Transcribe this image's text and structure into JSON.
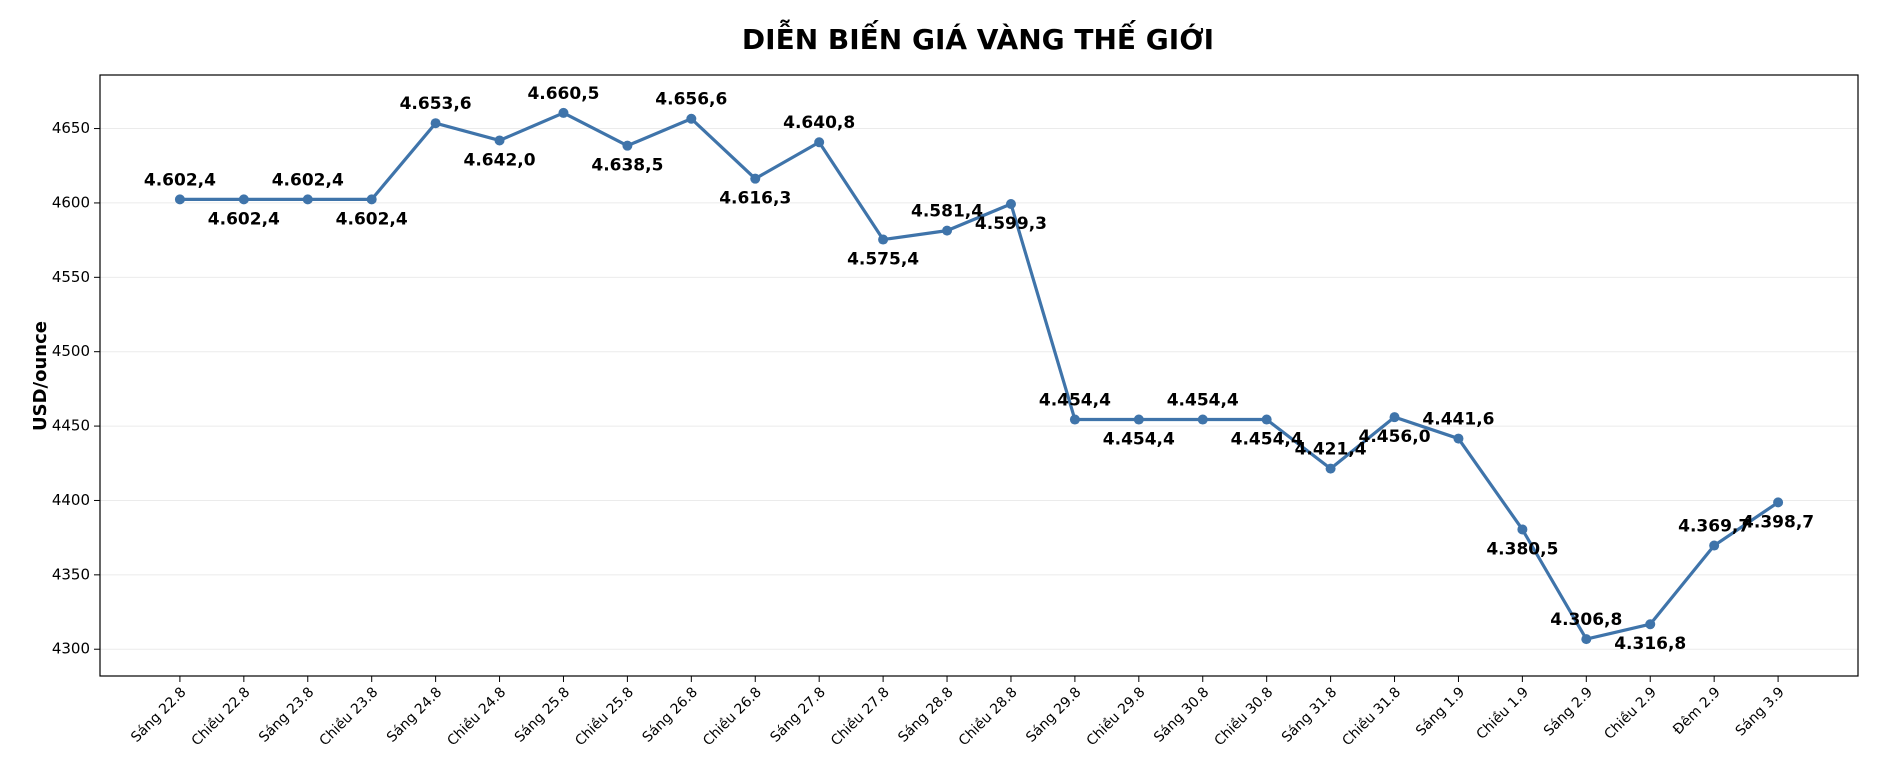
{
  "chart_data": {
    "type": "line",
    "title": "DIỄN BIẾN GIÁ VÀNG THẾ GIỚI",
    "y_label": "USD/ounce",
    "categories": [
      "Sáng 22.8",
      "Chiều 22.8",
      "Sáng 23.8",
      "Chiều 23.8",
      "Sáng 24.8",
      "Chiều 24.8",
      "Sáng 25.8",
      "Chiều 25.8",
      "Sáng 26.8",
      "Chiều 26.8",
      "Sáng 27.8",
      "Chiều 27.8",
      "Sáng 28.8",
      "Chiều 28.8",
      "Sáng 29.8",
      "Chiều 29.8",
      "Sáng 30.8",
      "Chiều 30.8",
      "Sáng 31.8",
      "Chiều 31.8",
      "Sáng 1.9",
      "Chiều 1.9",
      "Sáng 2.9",
      "Chiều 2.9",
      "Đêm 2.9",
      "Sáng 3.9"
    ],
    "series": [
      {
        "name": "USD/ounce",
        "color": "#3f74aa",
        "values": [
          4602.4,
          4602.4,
          4602.4,
          4602.4,
          4653.6,
          4642.0,
          4660.5,
          4638.5,
          4656.6,
          4616.3,
          4640.8,
          4575.4,
          4581.4,
          4599.3,
          4454.4,
          4454.4,
          4454.4,
          4454.4,
          4421.4,
          4456.0,
          4441.6,
          4380.5,
          4306.8,
          4316.8,
          4369.7,
          4398.7
        ],
        "value_labels": [
          "4.602,4",
          "4.602,4",
          "4.602,4",
          "4.602,4",
          "4.653,6",
          "4.642,0",
          "4.660,5",
          "4.638,5",
          "4.656,6",
          "4.616,3",
          "4.640,8",
          "4.575,4",
          "4.581,4",
          "4.599,3",
          "4.454,4",
          "4.454,4",
          "4.454,4",
          "4.454,4",
          "4.421,4",
          "4.456,0",
          "4.441,6",
          "4.380,5",
          "4.306,8",
          "4.316,8",
          "4.369,7",
          "4.398,7"
        ]
      }
    ],
    "ylim": [
      4282,
      4686
    ],
    "yticks": [
      4300,
      4350,
      4400,
      4450,
      4500,
      4550,
      4600,
      4650
    ],
    "grid": true
  }
}
